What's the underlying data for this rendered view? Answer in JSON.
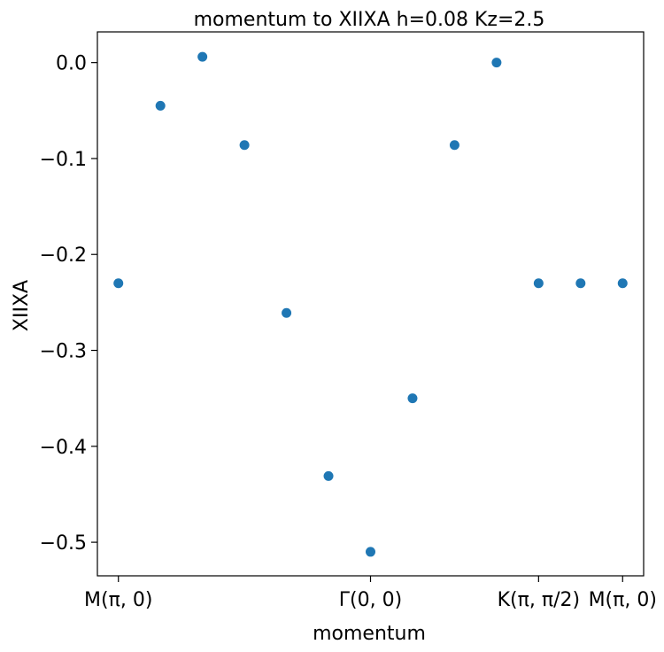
{
  "chart_data": {
    "type": "scatter",
    "title": "momentum to XIIXA h=0.08 Kz=2.5",
    "xlabel": "momentum",
    "ylabel": "XIIXA",
    "xlim": [
      -0.5,
      12.5
    ],
    "ylim": [
      -0.535,
      0.032
    ],
    "grid": false,
    "x_ticks": [
      {
        "x": 0,
        "label": "M(π, 0)"
      },
      {
        "x": 6,
        "label": "Γ(0, 0)"
      },
      {
        "x": 10,
        "label": "K(π, π/2)"
      },
      {
        "x": 12,
        "label": "M(π, 0)"
      }
    ],
    "y_ticks": [
      0.0,
      -0.1,
      -0.2,
      -0.3,
      -0.4,
      -0.5
    ],
    "y_tick_labels": [
      "0.0",
      "−0.1",
      "−0.2",
      "−0.3",
      "−0.4",
      "−0.5"
    ],
    "series": [
      {
        "color": "#1f77b4",
        "x": [
          0,
          1,
          2,
          3,
          4,
          5,
          6,
          7,
          8,
          9,
          10,
          11,
          12
        ],
        "y": [
          -0.23,
          -0.045,
          0.006,
          -0.086,
          -0.261,
          -0.431,
          -0.51,
          -0.35,
          -0.086,
          0.0,
          -0.23,
          -0.23,
          -0.23
        ]
      }
    ]
  }
}
